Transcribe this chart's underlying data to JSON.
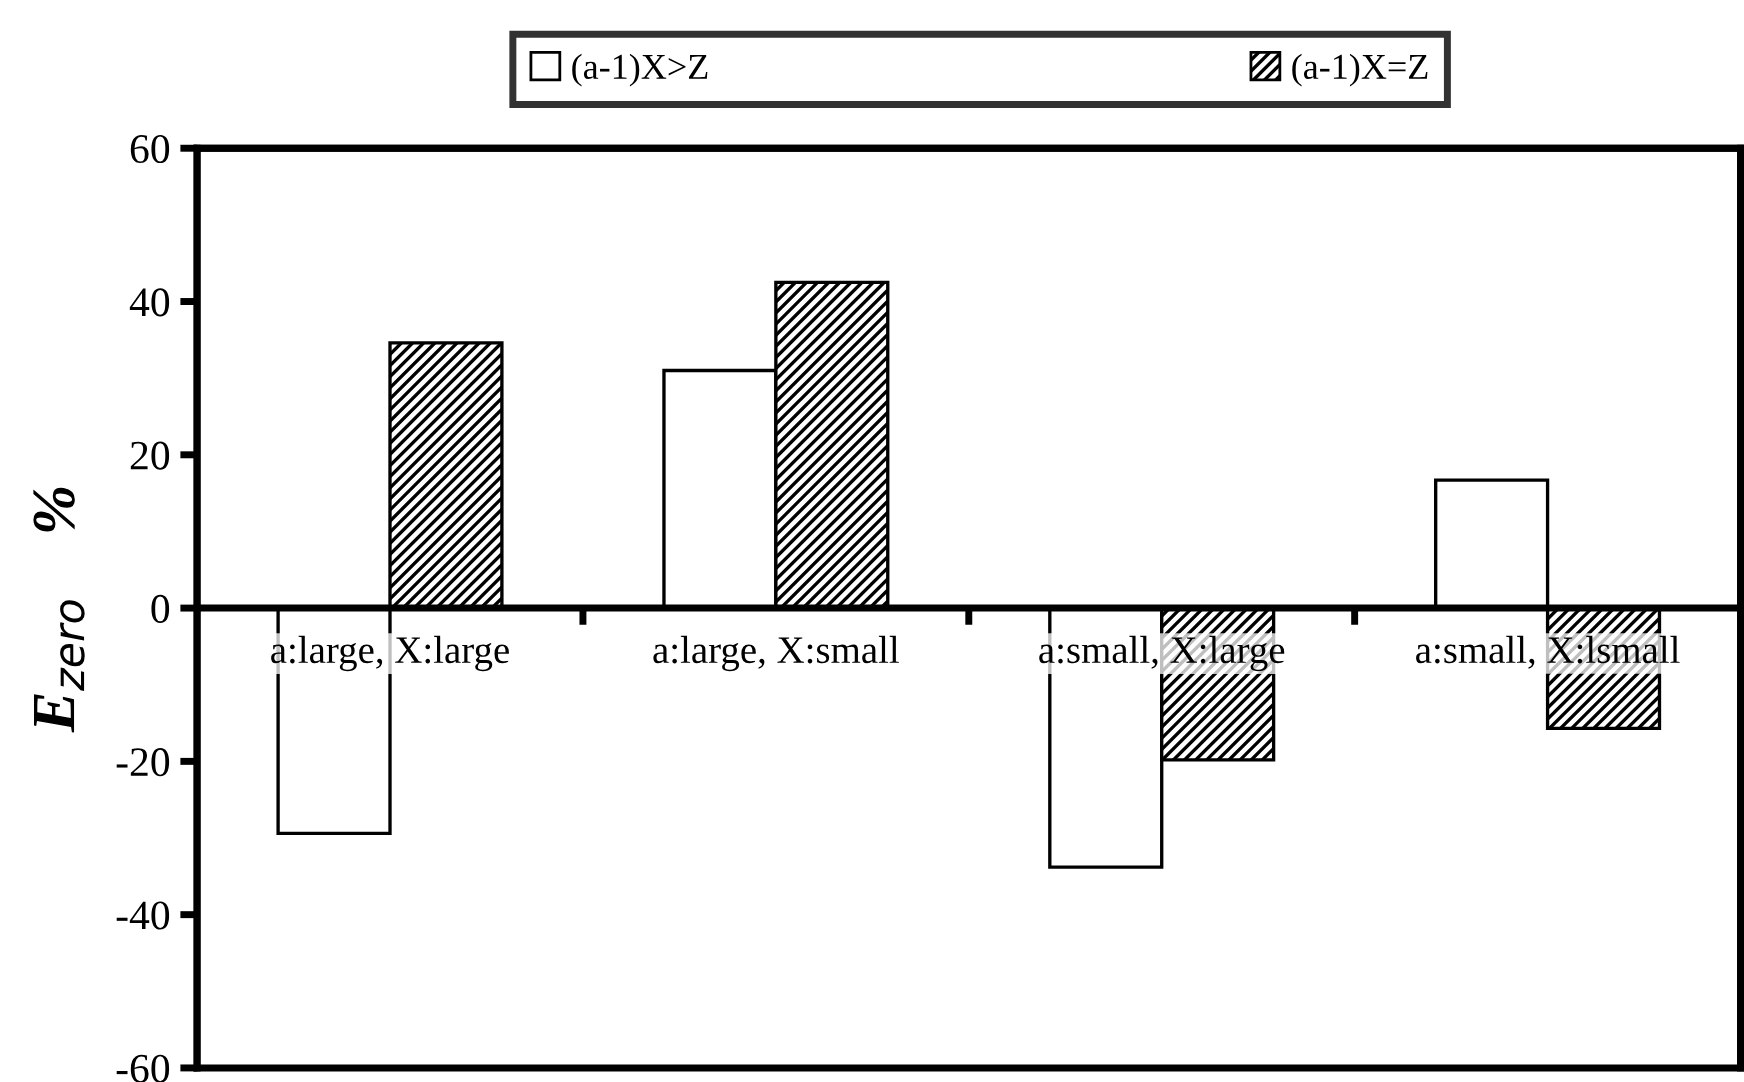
{
  "chart_data": {
    "type": "bar",
    "categories": [
      "a:large, X:large",
      "a:large, X:small",
      "a:small, X:large",
      "a:small, X:lsmall"
    ],
    "series": [
      {
        "name": "(a-1)X>Z",
        "color": "#ffffff",
        "values": [
          -29.4,
          31.0,
          -33.8,
          16.7
        ]
      },
      {
        "name": "(a-1)X=Z",
        "color": "#000000",
        "values": [
          34.6,
          42.5,
          -19.8,
          -15.7
        ]
      }
    ],
    "ylabel": "E$_{zero}$    %",
    "ylim": [
      -60,
      60
    ],
    "yticks": [
      -60,
      -40,
      -20,
      0,
      20,
      40,
      60
    ],
    "grid": false,
    "legend": "top"
  }
}
